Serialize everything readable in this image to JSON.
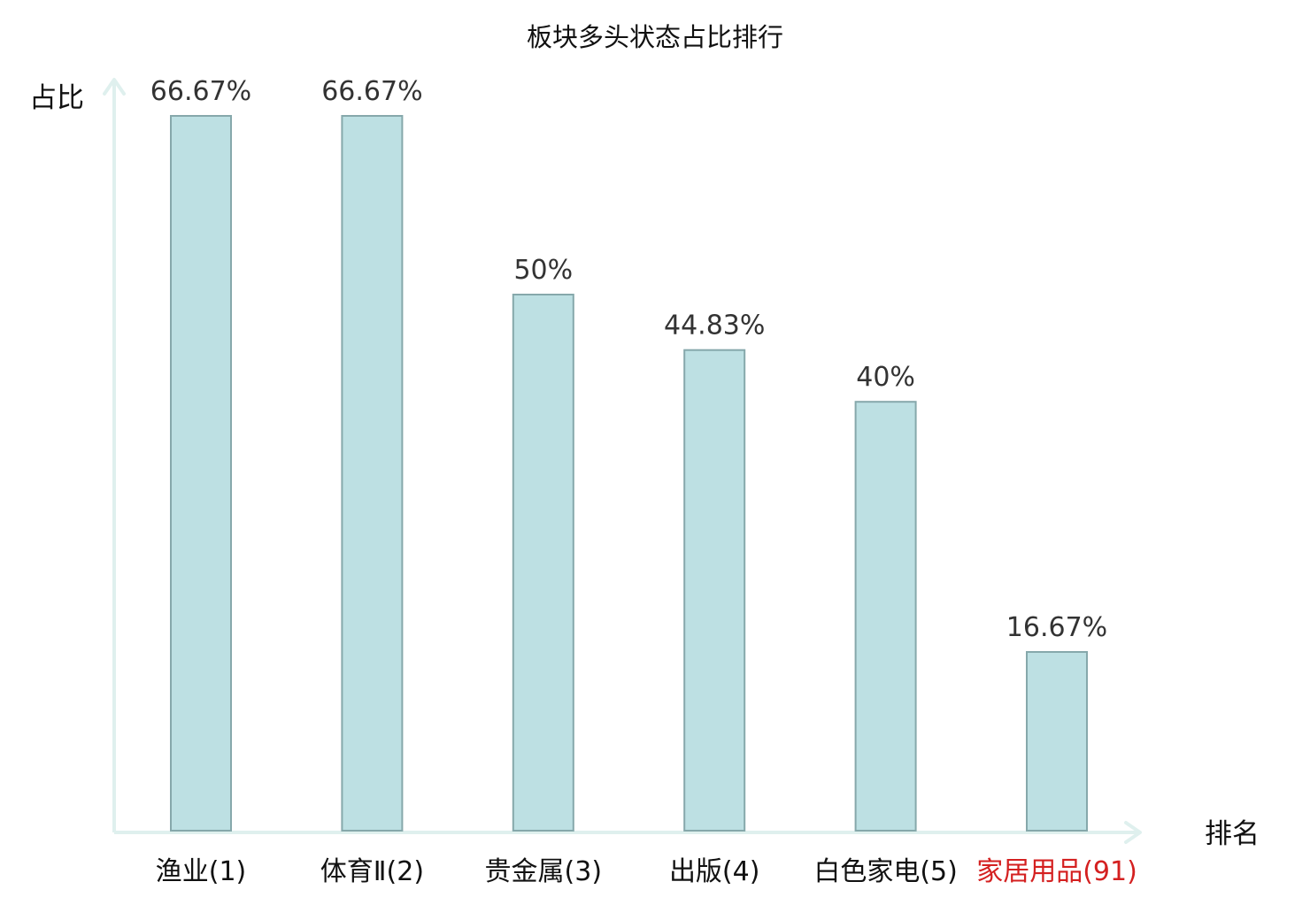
{
  "chart_data": {
    "type": "bar",
    "title": "板块多头状态占比排行",
    "ylabel": "占比",
    "xlabel": "排名",
    "categories": [
      "渔业(1)",
      "体育Ⅱ(2)",
      "贵金属(3)",
      "出版(4)",
      "白色家电(5)",
      "家居用品(91)"
    ],
    "values": [
      66.67,
      66.67,
      50,
      44.83,
      40,
      16.67
    ],
    "value_labels": [
      "66.67%",
      "66.67%",
      "50%",
      "44.83%",
      "40%",
      "16.67%"
    ],
    "highlight_index": 5,
    "ylim": [
      0,
      66.67
    ],
    "grid": false,
    "colors": {
      "bar_fill": "#bde0e3",
      "bar_stroke": "#86a8ab",
      "axis": "#dff0ee",
      "highlight_text": "#d42020",
      "label_text": "#333333"
    }
  }
}
